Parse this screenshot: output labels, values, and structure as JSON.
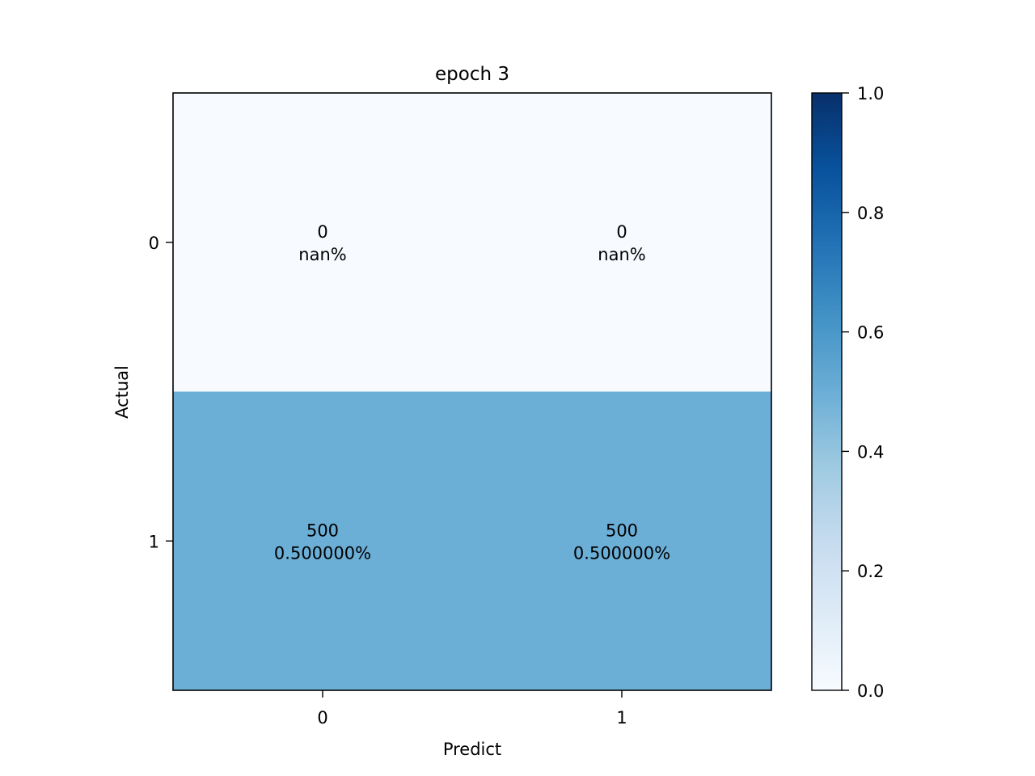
{
  "chart_data": {
    "type": "heatmap",
    "title": "epoch 3",
    "xlabel": "Predict",
    "ylabel": "Actual",
    "x_categories": [
      "0",
      "1"
    ],
    "y_categories": [
      "0",
      "1"
    ],
    "cells": [
      {
        "row": 0,
        "col": 0,
        "count": "0",
        "percent": "nan%",
        "value": 0.0
      },
      {
        "row": 0,
        "col": 1,
        "count": "0",
        "percent": "nan%",
        "value": 0.0
      },
      {
        "row": 1,
        "col": 0,
        "count": "500",
        "percent": "0.500000%",
        "value": 0.5
      },
      {
        "row": 1,
        "col": 1,
        "count": "500",
        "percent": "0.500000%",
        "value": 0.5
      }
    ],
    "colormap": "Blues",
    "colorbar": {
      "range": [
        0,
        1
      ],
      "ticks": [
        "0.0",
        "0.2",
        "0.4",
        "0.6",
        "0.8",
        "1.0"
      ],
      "stops": [
        "#f7fbff",
        "#deebf7",
        "#c6dbef",
        "#9ecae1",
        "#6baed6",
        "#4292c6",
        "#2171b5",
        "#08519c",
        "#08306b"
      ]
    }
  }
}
